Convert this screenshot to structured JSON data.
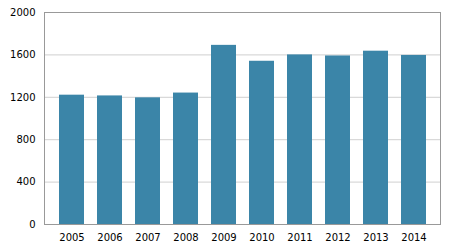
{
  "chart_data": {
    "type": "bar",
    "categories": [
      "2005",
      "2006",
      "2007",
      "2008",
      "2009",
      "2010",
      "2011",
      "2012",
      "2013",
      "2014"
    ],
    "values": [
      1220,
      1213,
      1195,
      1240,
      1690,
      1540,
      1600,
      1590,
      1635,
      1595
    ],
    "color": "#3B85A8",
    "ylim": [
      0,
      2000
    ],
    "yticks": [
      0,
      400,
      800,
      1200,
      1600,
      2000
    ],
    "grid": true
  }
}
